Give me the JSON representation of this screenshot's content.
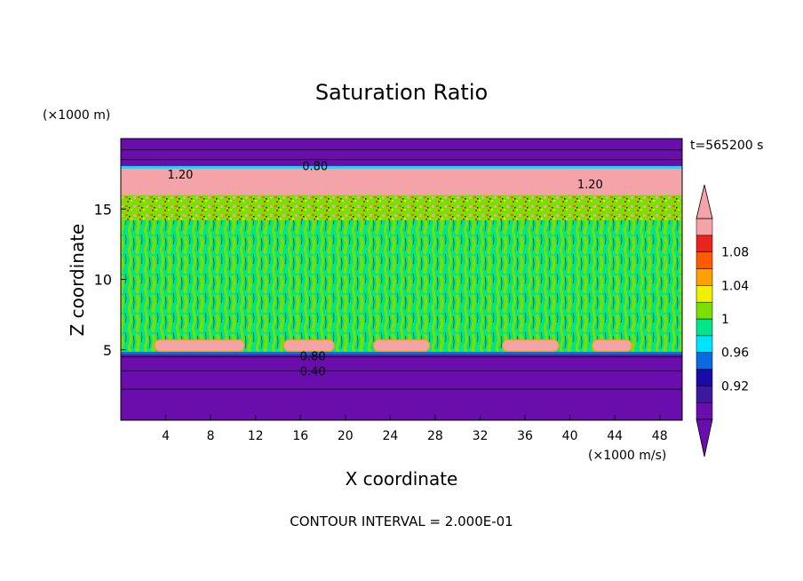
{
  "chart_data": {
    "type": "heatmap",
    "title": "Saturation Ratio",
    "xlabel": "X coordinate",
    "ylabel": "Z coordinate",
    "x_unit": "(×1000 m/s)",
    "y_unit": "(×1000 m)",
    "time_label": "t=565200 s",
    "footer": "CONTOUR INTERVAL = 2.000E-01",
    "xlim": [
      0,
      50
    ],
    "ylim": [
      0,
      20
    ],
    "x_ticks": [
      4,
      8,
      12,
      16,
      20,
      24,
      28,
      32,
      36,
      40,
      44,
      48
    ],
    "y_ticks": [
      5,
      10,
      15
    ],
    "contour_labels": [
      {
        "text": "1.20",
        "x": 5.3,
        "y": 17.3
      },
      {
        "text": "0.80",
        "x": 17.3,
        "y": 17.9
      },
      {
        "text": "1.20",
        "x": 41.8,
        "y": 16.6
      },
      {
        "text": "0.80",
        "x": 17.1,
        "y": 4.4
      },
      {
        "text": "0.40",
        "x": 17.1,
        "y": 3.3
      }
    ],
    "colorbar": {
      "tick_labels": [
        "0.92",
        "0.96",
        "1",
        "1.04",
        "1.08"
      ],
      "bands": [
        {
          "color": "#6a0dad"
        },
        {
          "color": "#3c1aa0"
        },
        {
          "color": "#1a0aa8"
        },
        {
          "color": "#0a6be0"
        },
        {
          "color": "#00e5ff"
        },
        {
          "color": "#00e58a"
        },
        {
          "color": "#7ae000"
        },
        {
          "color": "#f0f000"
        },
        {
          "color": "#ffa000"
        },
        {
          "color": "#ff5a00"
        },
        {
          "color": "#e8241c"
        },
        {
          "color": "#f4a3a8"
        }
      ]
    },
    "grid": false
  }
}
